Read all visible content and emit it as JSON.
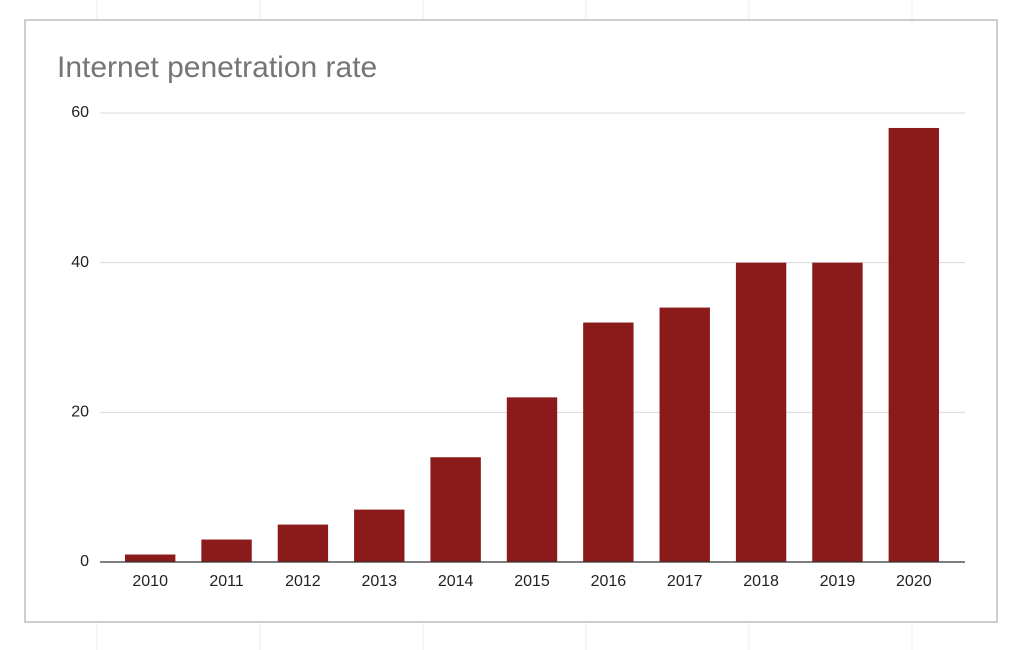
{
  "chart_data": {
    "type": "bar",
    "title": "Internet penetration rate",
    "categories": [
      "2010",
      "2011",
      "2012",
      "2013",
      "2014",
      "2015",
      "2016",
      "2017",
      "2018",
      "2019",
      "2020"
    ],
    "values": [
      1,
      3,
      5,
      7,
      14,
      22,
      32,
      34,
      40,
      40,
      58
    ],
    "color": "#8b1a1a",
    "ylim": [
      0,
      60
    ],
    "yticks": [
      0,
      20,
      40,
      60
    ],
    "grid": true
  }
}
